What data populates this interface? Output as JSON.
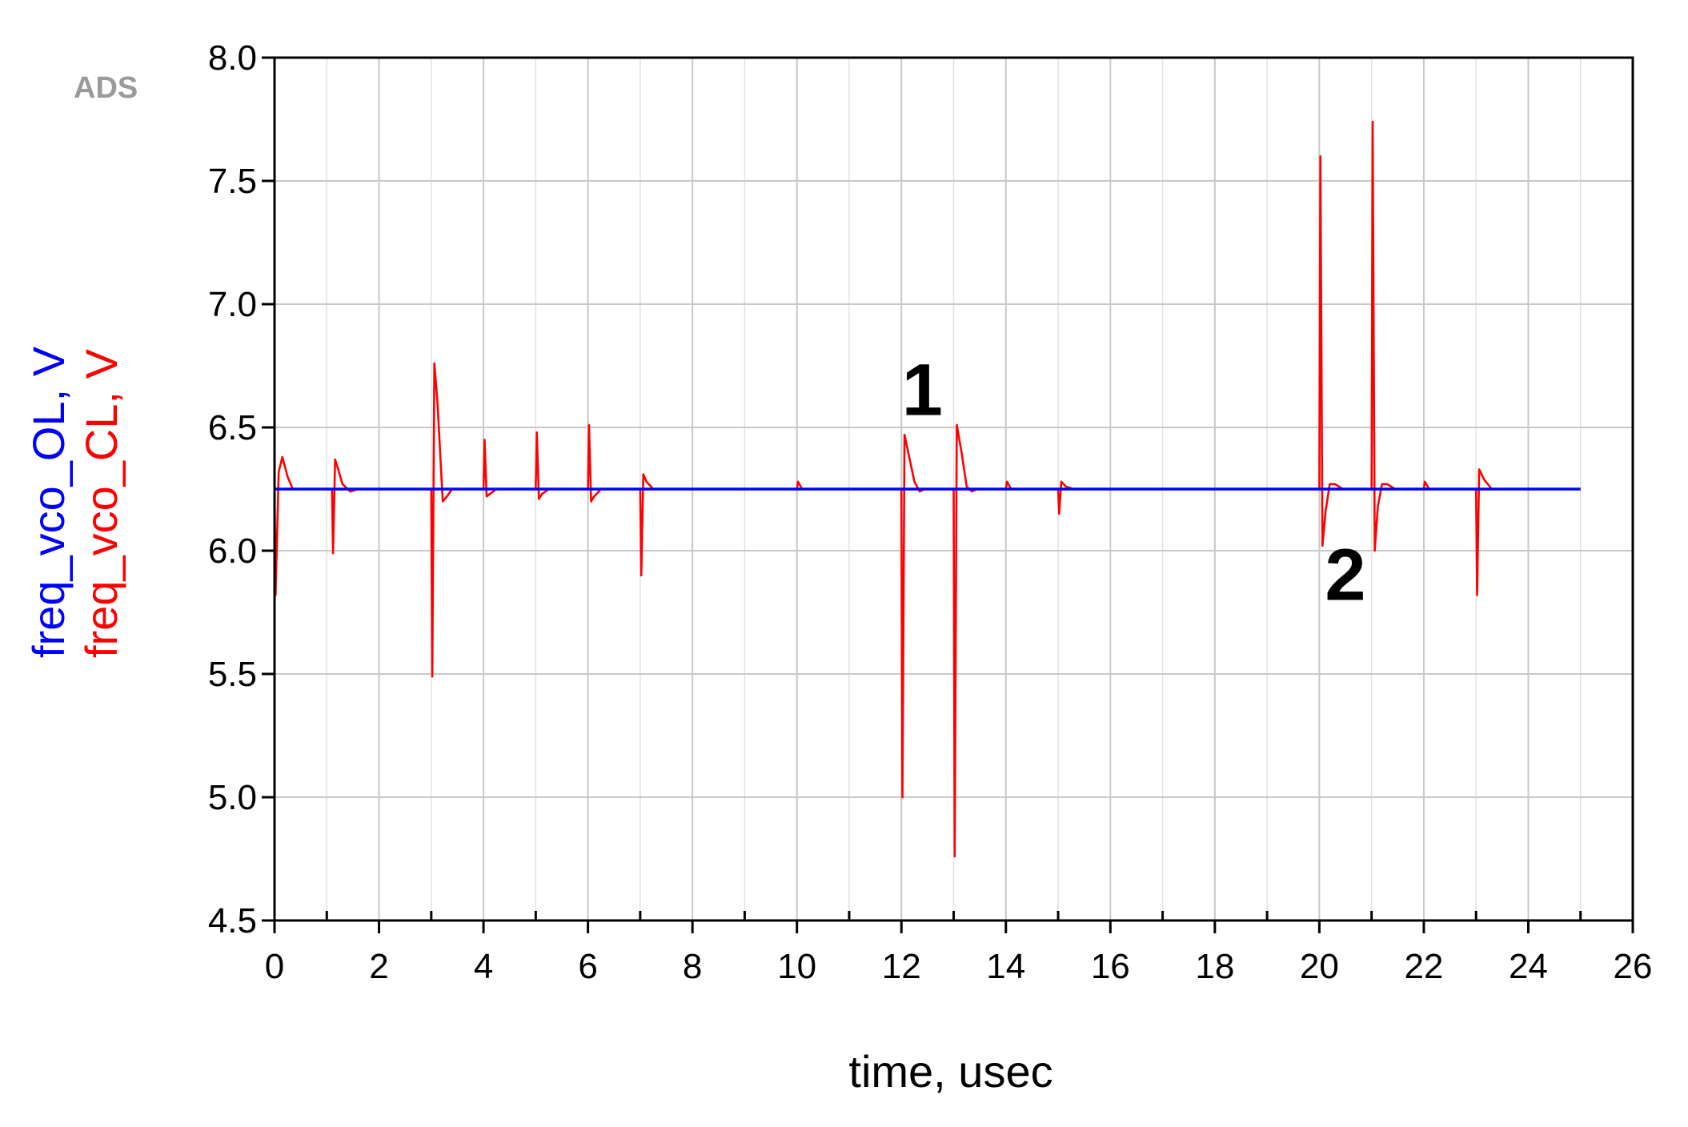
{
  "watermark": "ADS",
  "chart_data": {
    "type": "line",
    "title": "",
    "xlabel": "time, usec",
    "xlim": [
      0,
      26
    ],
    "ylim": [
      4.5,
      8.0
    ],
    "xticks": [
      0,
      2,
      4,
      6,
      8,
      10,
      12,
      14,
      16,
      18,
      20,
      22,
      24,
      26
    ],
    "xtick_labels": [
      "0",
      "2",
      "4",
      "6",
      "8",
      "10",
      "12",
      "14",
      "16",
      "18",
      "20",
      "22",
      "24",
      "26"
    ],
    "yticks": [
      4.5,
      5.0,
      5.5,
      6.0,
      6.5,
      7.0,
      7.5,
      8.0
    ],
    "ytick_labels": [
      "4.5",
      "5.0",
      "5.5",
      "6.0",
      "6.5",
      "7.0",
      "7.5",
      "8.0"
    ],
    "grid": true,
    "legend": "vertical y-axis label",
    "series": [
      {
        "name": "freq_vco_OL, V",
        "color": "#0000ff",
        "x": [
          0,
          25
        ],
        "y": [
          6.25,
          6.25
        ]
      },
      {
        "name": "freq_vco_CL, V",
        "color": "#ff0000",
        "x": [
          0,
          0.02,
          0.08,
          0.15,
          0.25,
          0.35,
          0.5,
          0.7,
          1.1,
          1.12,
          1.16,
          1.22,
          1.3,
          1.45,
          1.6,
          3.0,
          3.02,
          3.06,
          3.12,
          3.22,
          3.3,
          3.4,
          3.55,
          3.7,
          4.0,
          4.02,
          4.06,
          4.12,
          4.25,
          4.4,
          5.0,
          5.02,
          5.06,
          5.12,
          5.25,
          5.4,
          6.0,
          6.02,
          6.06,
          6.12,
          6.25,
          6.4,
          7.0,
          7.02,
          7.06,
          7.12,
          7.25,
          7.4,
          10.0,
          10.02,
          10.1,
          12.0,
          12.02,
          12.06,
          12.15,
          12.25,
          12.35,
          12.45,
          12.6,
          13.0,
          13.02,
          13.06,
          13.15,
          13.25,
          13.35,
          13.45,
          13.6,
          14.0,
          14.02,
          14.1,
          15.0,
          15.02,
          15.06,
          15.15,
          15.3,
          20.0,
          20.02,
          20.06,
          20.12,
          20.2,
          20.3,
          20.45,
          20.6,
          21.0,
          21.02,
          21.06,
          21.12,
          21.2,
          21.3,
          21.45,
          21.6,
          22.0,
          22.02,
          22.1,
          23.0,
          23.02,
          23.06,
          23.15,
          23.3,
          23.45,
          25.0
        ],
        "y": [
          6.25,
          5.82,
          6.32,
          6.38,
          6.3,
          6.25,
          6.25,
          6.25,
          6.25,
          5.99,
          6.37,
          6.33,
          6.27,
          6.24,
          6.25,
          6.25,
          5.49,
          6.76,
          6.6,
          6.2,
          6.22,
          6.25,
          6.25,
          6.25,
          6.25,
          6.45,
          6.22,
          6.23,
          6.25,
          6.25,
          6.25,
          6.48,
          6.21,
          6.23,
          6.25,
          6.25,
          6.25,
          6.51,
          6.2,
          6.22,
          6.25,
          6.25,
          6.25,
          5.9,
          6.31,
          6.28,
          6.25,
          6.25,
          6.25,
          6.28,
          6.25,
          6.25,
          5.0,
          6.47,
          6.38,
          6.28,
          6.24,
          6.25,
          6.25,
          6.25,
          4.76,
          6.51,
          6.4,
          6.26,
          6.24,
          6.25,
          6.25,
          6.25,
          6.28,
          6.25,
          6.25,
          6.15,
          6.28,
          6.26,
          6.25,
          6.25,
          7.6,
          6.02,
          6.16,
          6.27,
          6.27,
          6.25,
          6.25,
          6.25,
          7.74,
          6.0,
          6.18,
          6.27,
          6.27,
          6.25,
          6.25,
          6.25,
          6.28,
          6.25,
          6.25,
          5.82,
          6.33,
          6.29,
          6.25,
          6.25,
          6.25
        ]
      }
    ],
    "annotations": [
      {
        "text": "1",
        "x": 12.4,
        "y": 6.55
      },
      {
        "text": "2",
        "x": 20.5,
        "y": 5.8
      }
    ]
  }
}
